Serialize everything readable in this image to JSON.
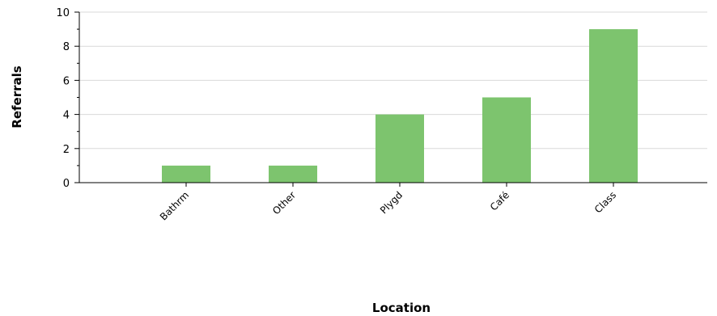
{
  "chart_data": {
    "type": "bar",
    "categories": [
      "Bathrm",
      "Other",
      "Plygd",
      "Café",
      "Class"
    ],
    "values": [
      1,
      1,
      4,
      5,
      9
    ],
    "title": "",
    "xlabel": "Location",
    "ylabel": "Referrals",
    "ylim": [
      0,
      10
    ],
    "yticks": [
      0,
      2,
      4,
      6,
      8,
      10
    ],
    "grid": true,
    "legend": "none",
    "bar_color": "#7dc46e"
  }
}
